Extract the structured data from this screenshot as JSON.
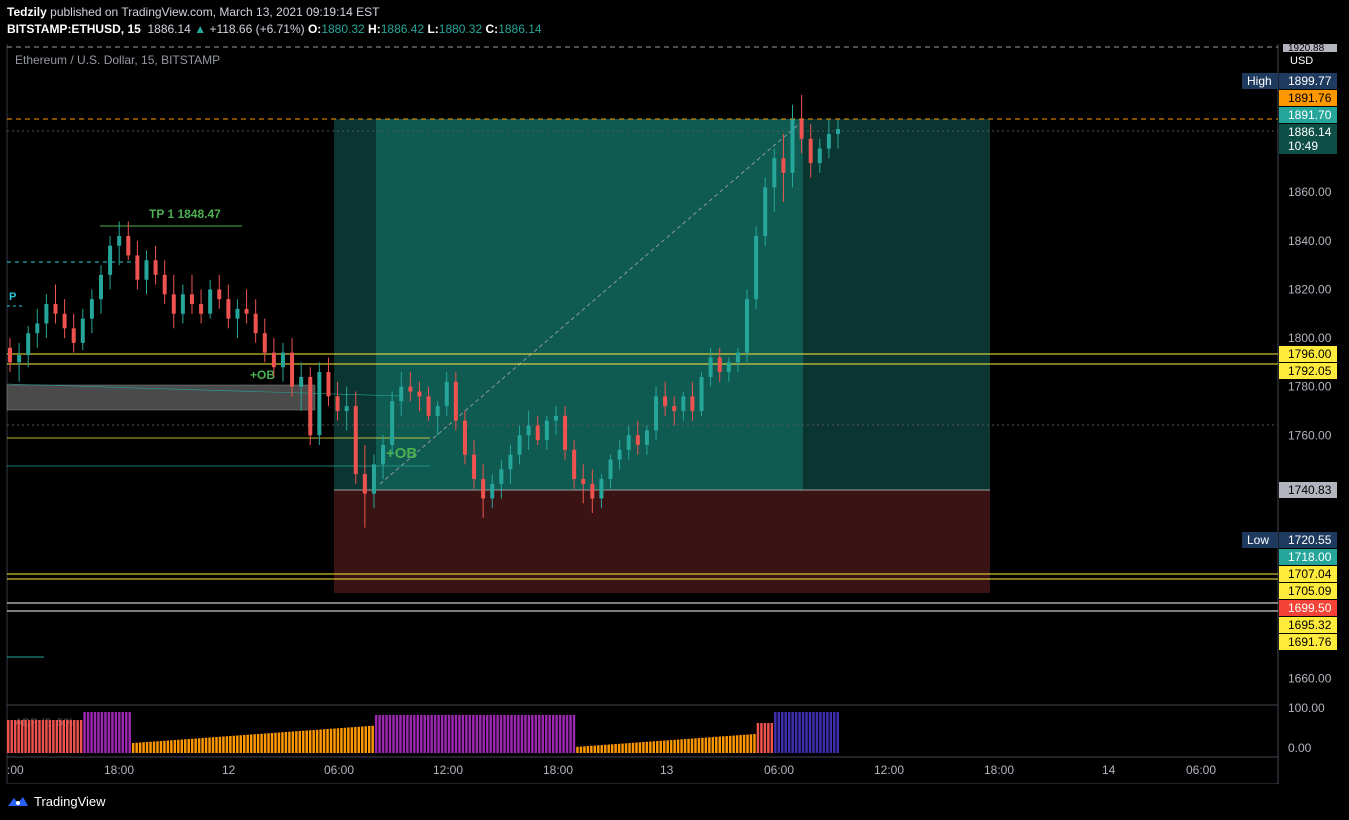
{
  "header": {
    "author": "Tedzily",
    "published": "published on TradingView.com, March 13, 2021 09:19:14 EST",
    "symbol": "BITSTAMP:ETHUSD, 15",
    "last": "1886.14",
    "change_arrow": "▲",
    "change": "+118.66 (+6.71%)",
    "o_key": "O:",
    "o": "1880.32",
    "h_key": "H:",
    "h": "1886.42",
    "l_key": "L:",
    "l": "1880.32",
    "c_key": "C:",
    "c": "1886.14"
  },
  "legend": "Ethereum / U.S. Dollar, 15, BITSTAMP",
  "currency": "USD",
  "footer": {
    "brand": "TradingView"
  },
  "colors": {
    "up": "#26a69a",
    "down": "#ef5350",
    "yellow": "#ffeb3b",
    "orange": "#ff9800",
    "profit_zone": "#0d4f47",
    "loss_zone": "#3d1212",
    "axis_bg": "#000000"
  },
  "chart_data": {
    "type": "candlestick",
    "symbol": "ETHUSD",
    "interval": "15",
    "ylim": [
      1649,
      1921
    ],
    "y_ticks": [
      1860,
      1840,
      1820,
      1800,
      1780,
      1760,
      1660
    ],
    "y_tick_labels": [
      "1860.00",
      "1840.00",
      "1820.00",
      "1800.00",
      "1780.00",
      "1760.00",
      "1660.00"
    ],
    "x_tick_labels": [
      ":00",
      "18:00",
      "12",
      "06:00",
      "12:00",
      "18:00",
      "13",
      "06:00",
      "12:00",
      "18:00",
      "14",
      "06:00"
    ],
    "price_labels": [
      {
        "label": "High",
        "value": "1899.77",
        "kind": "high"
      },
      {
        "value": "1891.76",
        "kind": "orange"
      },
      {
        "value": "1891.70",
        "kind": "teal"
      },
      {
        "value": "1886.14",
        "sub": "10:49",
        "kind": "last"
      },
      {
        "value": "1796.00",
        "kind": "yellow"
      },
      {
        "value": "1792.05",
        "kind": "yellow"
      },
      {
        "value": "1740.83",
        "kind": "gray"
      },
      {
        "label": "Low",
        "value": "1720.55",
        "kind": "low"
      },
      {
        "value": "1718.00",
        "kind": "teal"
      },
      {
        "value": "1707.04",
        "kind": "yellow"
      },
      {
        "value": "1705.09",
        "kind": "yellow"
      },
      {
        "value": "1699.50",
        "kind": "red"
      },
      {
        "value": "1695.32",
        "kind": "yellow"
      },
      {
        "value": "1691.76",
        "kind": "yellow"
      }
    ],
    "top_label": "1920.88",
    "annotations": [
      "TP 1 1848.47",
      "+OB",
      "+OB",
      "P"
    ],
    "position": {
      "entry": 1740.83,
      "target": 1891.7,
      "stop": 1691.76
    },
    "indicator": {
      "name": "ADR (5, 50)",
      "levels": [
        "100.00",
        "0.00"
      ]
    },
    "candles": [
      [
        1796,
        1800,
        1786,
        1790
      ],
      [
        1790,
        1798,
        1782,
        1793
      ],
      [
        1793,
        1805,
        1788,
        1802
      ],
      [
        1802,
        1812,
        1796,
        1806
      ],
      [
        1806,
        1818,
        1800,
        1814
      ],
      [
        1814,
        1822,
        1806,
        1810
      ],
      [
        1810,
        1816,
        1800,
        1804
      ],
      [
        1804,
        1810,
        1794,
        1798
      ],
      [
        1798,
        1812,
        1795,
        1808
      ],
      [
        1808,
        1820,
        1802,
        1816
      ],
      [
        1816,
        1830,
        1810,
        1826
      ],
      [
        1826,
        1842,
        1820,
        1838
      ],
      [
        1838,
        1848,
        1830,
        1842
      ],
      [
        1842,
        1848,
        1832,
        1834
      ],
      [
        1834,
        1840,
        1820,
        1824
      ],
      [
        1824,
        1836,
        1818,
        1832
      ],
      [
        1832,
        1838,
        1822,
        1826
      ],
      [
        1826,
        1832,
        1814,
        1818
      ],
      [
        1818,
        1826,
        1804,
        1810
      ],
      [
        1810,
        1822,
        1806,
        1818
      ],
      [
        1818,
        1826,
        1810,
        1814
      ],
      [
        1814,
        1820,
        1806,
        1810
      ],
      [
        1810,
        1824,
        1808,
        1820
      ],
      [
        1820,
        1826,
        1812,
        1816
      ],
      [
        1816,
        1822,
        1804,
        1808
      ],
      [
        1808,
        1816,
        1800,
        1812
      ],
      [
        1812,
        1820,
        1806,
        1810
      ],
      [
        1810,
        1816,
        1798,
        1802
      ],
      [
        1802,
        1808,
        1790,
        1794
      ],
      [
        1794,
        1800,
        1784,
        1788
      ],
      [
        1788,
        1798,
        1782,
        1794
      ],
      [
        1794,
        1800,
        1776,
        1780
      ],
      [
        1780,
        1790,
        1770,
        1784
      ],
      [
        1784,
        1788,
        1756,
        1760
      ],
      [
        1760,
        1790,
        1756,
        1786
      ],
      [
        1786,
        1792,
        1772,
        1776
      ],
      [
        1776,
        1782,
        1766,
        1770
      ],
      [
        1770,
        1780,
        1762,
        1772
      ],
      [
        1772,
        1778,
        1740,
        1744
      ],
      [
        1744,
        1756,
        1722,
        1736
      ],
      [
        1736,
        1752,
        1730,
        1748
      ],
      [
        1748,
        1760,
        1742,
        1756
      ],
      [
        1756,
        1778,
        1752,
        1774
      ],
      [
        1774,
        1786,
        1768,
        1780
      ],
      [
        1780,
        1786,
        1774,
        1778
      ],
      [
        1778,
        1782,
        1770,
        1776
      ],
      [
        1776,
        1780,
        1766,
        1768
      ],
      [
        1768,
        1774,
        1760,
        1772
      ],
      [
        1772,
        1786,
        1768,
        1782
      ],
      [
        1782,
        1786,
        1762,
        1766
      ],
      [
        1766,
        1770,
        1748,
        1752
      ],
      [
        1752,
        1758,
        1738,
        1742
      ],
      [
        1742,
        1748,
        1726,
        1734
      ],
      [
        1734,
        1744,
        1730,
        1740
      ],
      [
        1740,
        1750,
        1734,
        1746
      ],
      [
        1746,
        1756,
        1740,
        1752
      ],
      [
        1752,
        1764,
        1748,
        1760
      ],
      [
        1760,
        1770,
        1754,
        1764
      ],
      [
        1764,
        1768,
        1756,
        1758
      ],
      [
        1758,
        1768,
        1754,
        1766
      ],
      [
        1766,
        1772,
        1760,
        1768
      ],
      [
        1768,
        1772,
        1750,
        1754
      ],
      [
        1754,
        1758,
        1738,
        1742
      ],
      [
        1742,
        1748,
        1732,
        1740
      ],
      [
        1740,
        1746,
        1728,
        1734
      ],
      [
        1734,
        1744,
        1730,
        1742
      ],
      [
        1742,
        1752,
        1738,
        1750
      ],
      [
        1750,
        1758,
        1746,
        1754
      ],
      [
        1754,
        1764,
        1750,
        1760
      ],
      [
        1760,
        1766,
        1752,
        1756
      ],
      [
        1756,
        1764,
        1752,
        1762
      ],
      [
        1762,
        1780,
        1758,
        1776
      ],
      [
        1776,
        1782,
        1768,
        1772
      ],
      [
        1772,
        1776,
        1764,
        1770
      ],
      [
        1770,
        1778,
        1766,
        1776
      ],
      [
        1776,
        1782,
        1766,
        1770
      ],
      [
        1770,
        1786,
        1768,
        1784
      ],
      [
        1784,
        1796,
        1780,
        1792
      ],
      [
        1792,
        1796,
        1782,
        1786
      ],
      [
        1786,
        1792,
        1782,
        1790
      ],
      [
        1790,
        1796,
        1786,
        1794
      ],
      [
        1794,
        1820,
        1790,
        1816
      ],
      [
        1816,
        1846,
        1812,
        1842
      ],
      [
        1842,
        1866,
        1838,
        1862
      ],
      [
        1862,
        1878,
        1852,
        1874
      ],
      [
        1874,
        1884,
        1856,
        1868
      ],
      [
        1868,
        1896,
        1862,
        1890
      ],
      [
        1890,
        1900,
        1876,
        1882
      ],
      [
        1882,
        1888,
        1866,
        1872
      ],
      [
        1872,
        1882,
        1868,
        1878
      ],
      [
        1878,
        1890,
        1874,
        1884
      ],
      [
        1884,
        1890,
        1878,
        1886
      ]
    ]
  }
}
